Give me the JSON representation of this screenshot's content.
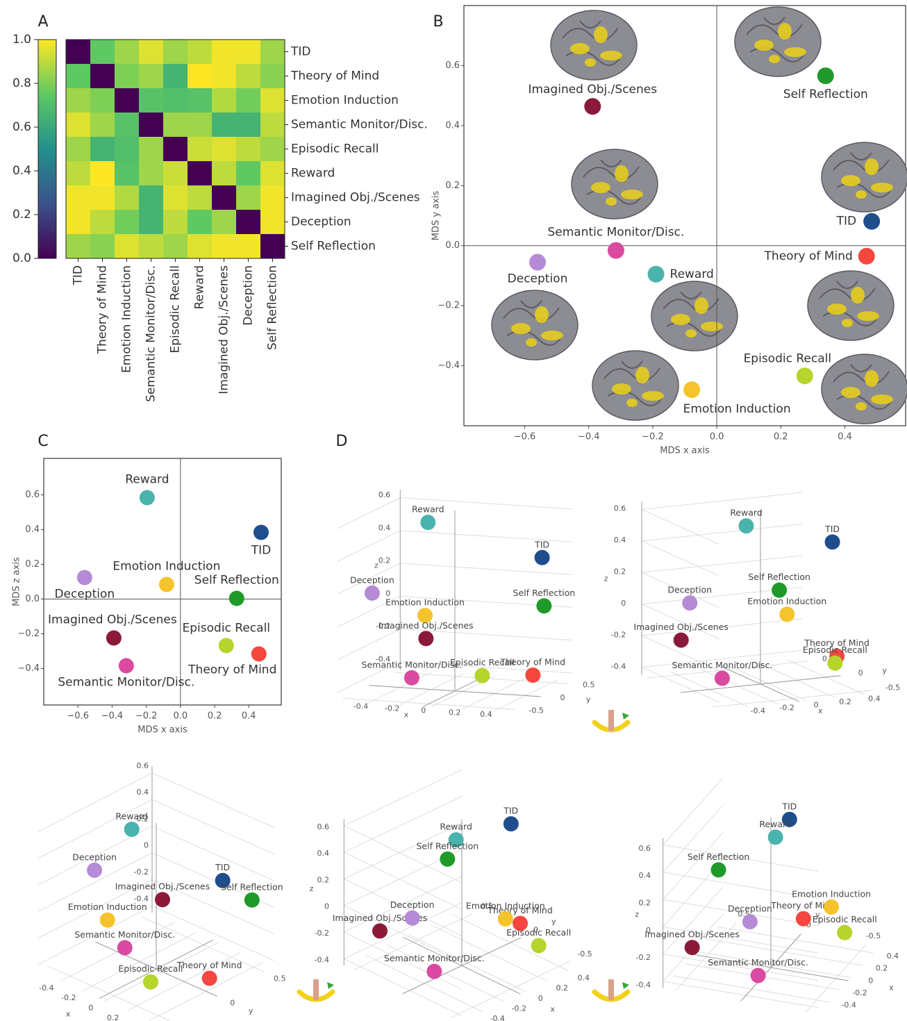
{
  "chart_data": [
    {
      "type": "heatmap",
      "panel": "A",
      "categories": [
        "TID",
        "Theory of Mind",
        "Emotion Induction",
        "Semantic Monitor/Disc.",
        "Episodic Recall",
        "Reward",
        "Imagined Obj./Scenes",
        "Deception",
        "Self Reflection"
      ],
      "values": [
        [
          0,
          0.75,
          0.85,
          0.95,
          0.85,
          0.9,
          0.98,
          0.98,
          0.85
        ],
        [
          0.75,
          0,
          0.8,
          0.85,
          0.65,
          1.0,
          0.98,
          0.9,
          0.82
        ],
        [
          0.85,
          0.8,
          0,
          0.72,
          0.7,
          0.72,
          0.88,
          0.78,
          0.95
        ],
        [
          0.95,
          0.85,
          0.72,
          0,
          0.85,
          0.85,
          0.65,
          0.65,
          0.9
        ],
        [
          0.85,
          0.65,
          0.7,
          0.85,
          0,
          0.92,
          0.95,
          0.9,
          0.85
        ],
        [
          0.9,
          1.0,
          0.72,
          0.85,
          0.92,
          0,
          0.9,
          0.75,
          0.95
        ],
        [
          0.98,
          0.98,
          0.88,
          0.65,
          0.95,
          0.9,
          0,
          0.85,
          0.98
        ],
        [
          0.98,
          0.9,
          0.78,
          0.65,
          0.9,
          0.75,
          0.85,
          0,
          0.98
        ],
        [
          0.85,
          0.82,
          0.95,
          0.9,
          0.85,
          0.95,
          0.98,
          0.98,
          0
        ]
      ],
      "colormap": "viridis",
      "zlim": [
        0,
        1
      ],
      "zticks": [
        {
          "value": 0,
          "label": "0.0"
        },
        {
          "value": 0.2,
          "label": "0.2"
        },
        {
          "value": 0.4,
          "label": "0.4"
        },
        {
          "value": 0.6,
          "label": "0.6"
        },
        {
          "value": 0.8,
          "label": "0.8"
        },
        {
          "value": 1,
          "label": "1.0"
        }
      ]
    },
    {
      "type": "scatter",
      "panel": "B",
      "xlabel": "MDS x axis",
      "ylabel": "MDS y axis",
      "reference_lines": true,
      "xlim": [
        -0.79,
        0.59
      ],
      "ylim": [
        -0.6,
        0.8
      ],
      "xticks": [
        {
          "value": -0.6,
          "label": "−0.6"
        },
        {
          "value": -0.4,
          "label": "−0.4"
        },
        {
          "value": -0.2,
          "label": "−0.2"
        },
        {
          "value": 0,
          "label": "0.0"
        },
        {
          "value": 0.2,
          "label": "0.2"
        },
        {
          "value": 0.4,
          "label": "0.4"
        }
      ],
      "yticks": [
        {
          "value": -0.4,
          "label": "−0.4"
        },
        {
          "value": -0.2,
          "label": "−0.2"
        },
        {
          "value": 0,
          "label": "0.0"
        },
        {
          "value": 0.2,
          "label": "0.2"
        },
        {
          "value": 0.4,
          "label": "0.4"
        },
        {
          "value": 0.6,
          "label": "0.6"
        }
      ],
      "series": [
        {
          "name": "TID",
          "color": "#1f4e8c",
          "x": [
            0.484
          ],
          "values": [
            0.081
          ]
        },
        {
          "name": "Theory of Mind",
          "color": "#f5473f",
          "x": [
            0.468
          ],
          "values": [
            -0.035
          ]
        },
        {
          "name": "Emotion Induction",
          "color": "#f5c32c",
          "x": [
            -0.078
          ],
          "values": [
            -0.48
          ]
        },
        {
          "name": "Semantic Monitor/Disc.",
          "color": "#d94aa0",
          "x": [
            -0.315
          ],
          "values": [
            -0.016
          ]
        },
        {
          "name": "Episodic Recall",
          "color": "#b5d42c",
          "x": [
            0.275
          ],
          "values": [
            -0.434
          ]
        },
        {
          "name": "Reward",
          "color": "#4bb3ad",
          "x": [
            -0.19
          ],
          "values": [
            -0.095
          ]
        },
        {
          "name": "Imagined Obj./Scenes",
          "color": "#8b1a3a",
          "x": [
            -0.388
          ],
          "values": [
            0.464
          ]
        },
        {
          "name": "Deception",
          "color": "#b58ad6",
          "x": [
            -0.56
          ],
          "values": [
            -0.055
          ]
        },
        {
          "name": "Self Reflection",
          "color": "#1f9a2a",
          "x": [
            0.34
          ],
          "values": [
            0.566
          ]
        }
      ]
    },
    {
      "type": "scatter",
      "panel": "C",
      "xlabel": "MDS x axis",
      "ylabel": "MDS z axis",
      "reference_lines": true,
      "xlim": [
        -0.8,
        0.59
      ],
      "ylim": [
        -0.61,
        0.81
      ],
      "xticks": [
        {
          "value": -0.6,
          "label": "−0.6"
        },
        {
          "value": -0.4,
          "label": "−0.4"
        },
        {
          "value": -0.2,
          "label": "−0.2"
        },
        {
          "value": 0,
          "label": "0.0"
        },
        {
          "value": 0.2,
          "label": "0.2"
        },
        {
          "value": 0.4,
          "label": "0.4"
        }
      ],
      "yticks": [
        {
          "value": -0.4,
          "label": "−0.4"
        },
        {
          "value": -0.2,
          "label": "−0.2"
        },
        {
          "value": 0,
          "label": "0.0"
        },
        {
          "value": 0.2,
          "label": "0.2"
        },
        {
          "value": 0.4,
          "label": "0.4"
        },
        {
          "value": 0.6,
          "label": "0.6"
        }
      ],
      "series": [
        {
          "name": "TID",
          "color": "#1f4e8c",
          "x": [
            0.472
          ],
          "values": [
            0.384
          ]
        },
        {
          "name": "Theory of Mind",
          "color": "#f5473f",
          "x": [
            0.459
          ],
          "values": [
            -0.316
          ]
        },
        {
          "name": "Emotion Induction",
          "color": "#f5c32c",
          "x": [
            -0.081
          ],
          "values": [
            0.084
          ]
        },
        {
          "name": "Semantic Monitor/Disc.",
          "color": "#d94aa0",
          "x": [
            -0.317
          ],
          "values": [
            -0.384
          ]
        },
        {
          "name": "Episodic Recall",
          "color": "#b5d42c",
          "x": [
            0.268
          ],
          "values": [
            -0.268
          ]
        },
        {
          "name": "Reward",
          "color": "#4bb3ad",
          "x": [
            -0.195
          ],
          "values": [
            0.584
          ]
        },
        {
          "name": "Imagined Obj./Scenes",
          "color": "#8b1a3a",
          "x": [
            -0.39
          ],
          "values": [
            -0.224
          ]
        },
        {
          "name": "Deception",
          "color": "#b58ad6",
          "x": [
            -0.561
          ],
          "values": [
            0.124
          ]
        },
        {
          "name": "Self Reflection",
          "color": "#1f9a2a",
          "x": [
            0.329
          ],
          "values": [
            0.004
          ]
        }
      ]
    },
    {
      "type": "scatter3d",
      "panel": "D",
      "xlabel": "x",
      "ylabel": "y",
      "zlabel": "z",
      "xlim": [
        -0.6,
        0.5
      ],
      "ylim": [
        -0.6,
        0.6
      ],
      "zlim": [
        -0.45,
        0.65
      ],
      "xticks": [
        -0.4,
        -0.2,
        0,
        0.2,
        0.4
      ],
      "yticks": [
        -0.5,
        0,
        0.5
      ],
      "zticks": [
        -0.4,
        -0.2,
        0,
        0.2,
        0.4,
        0.6
      ],
      "names": [
        "TID",
        "Theory of Mind",
        "Emotion Induction",
        "Semantic Monitor/Disc.",
        "Episodic Recall",
        "Reward",
        "Imagined Obj./Scenes",
        "Deception",
        "Self Reflection"
      ],
      "colors": [
        "#1f4e8c",
        "#f5473f",
        "#f5c32c",
        "#d94aa0",
        "#b5d42c",
        "#4bb3ad",
        "#8b1a3a",
        "#b58ad6",
        "#1f9a2a"
      ],
      "x": [
        0.48,
        0.46,
        -0.08,
        -0.32,
        0.27,
        -0.19,
        -0.39,
        -0.56,
        0.33
      ],
      "y": [
        0.081,
        -0.035,
        -0.48,
        -0.016,
        -0.434,
        -0.095,
        0.464,
        -0.055,
        0.566
      ],
      "z": [
        0.384,
        -0.316,
        0.084,
        -0.384,
        -0.268,
        0.584,
        -0.224,
        0.124,
        0.004
      ]
    }
  ]
}
